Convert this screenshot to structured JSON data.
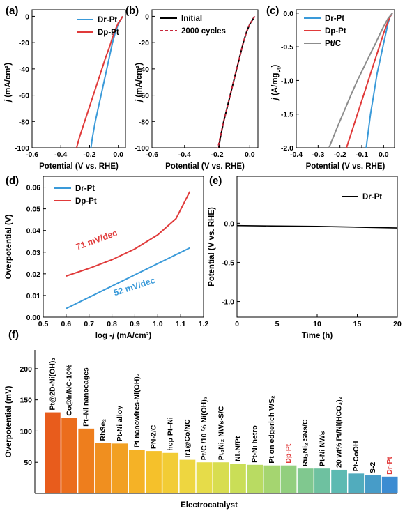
{
  "chart_data": [
    {
      "type": "line",
      "panel": "(a)",
      "xlabel": "Potential (V vs. RHE)",
      "ylabel": "j (mA/cm²)",
      "xlim": [
        -0.6,
        0.05
      ],
      "ylim": [
        -100,
        5
      ],
      "xticks": [
        -0.6,
        -0.4,
        -0.2,
        0.0
      ],
      "xtick_labels": [
        "-0.6",
        "-0.4",
        "-0.2",
        "0.0"
      ],
      "yticks": [
        0,
        -20,
        -40,
        -60,
        -80,
        -100
      ],
      "ytick_labels": [
        "0",
        "-20",
        "-40",
        "-60",
        "-80",
        "-100"
      ],
      "legend_placement": "top-right",
      "series": [
        {
          "name": "Dr-Pt",
          "color": "#3a9ad9",
          "x": [
            0.03,
            0.02,
            0.0,
            -0.02,
            -0.04,
            -0.06,
            -0.08,
            -0.1,
            -0.12,
            -0.14,
            -0.16,
            -0.18,
            -0.19
          ],
          "y": [
            0,
            -2,
            -6,
            -12,
            -20,
            -30,
            -40,
            -50,
            -60,
            -70,
            -80,
            -92,
            -100
          ]
        },
        {
          "name": "Dp-Pt",
          "color": "#e03a3a",
          "x": [
            0.03,
            0.02,
            0.0,
            -0.02,
            -0.04,
            -0.06,
            -0.09,
            -0.12,
            -0.15,
            -0.18,
            -0.21,
            -0.24,
            -0.27,
            -0.29
          ],
          "y": [
            0,
            -2,
            -5,
            -10,
            -16,
            -23,
            -32,
            -42,
            -52,
            -62,
            -72,
            -82,
            -92,
            -100
          ]
        }
      ]
    },
    {
      "type": "line",
      "panel": "(b)",
      "xlabel": "Potential (V vs. RHE)",
      "ylabel": "j (mA/cm²)",
      "xlim": [
        -0.6,
        0.05
      ],
      "ylim": [
        -100,
        5
      ],
      "xticks": [
        -0.6,
        -0.4,
        -0.2,
        0.0
      ],
      "xtick_labels": [
        "-0.6",
        "-0.4",
        "-0.2",
        "0.0"
      ],
      "yticks": [
        0,
        -20,
        -40,
        -60,
        -80,
        -100
      ],
      "ytick_labels": [
        "0",
        "-20",
        "-40",
        "-60",
        "-80",
        "-100"
      ],
      "legend_placement": "top-left",
      "series": [
        {
          "name": "Initial",
          "color": "#000000",
          "x": [
            0.03,
            0.02,
            0.0,
            -0.02,
            -0.04,
            -0.06,
            -0.08,
            -0.1,
            -0.12,
            -0.14,
            -0.16,
            -0.18,
            -0.19
          ],
          "y": [
            0,
            -2,
            -6,
            -12,
            -20,
            -30,
            -40,
            -50,
            -60,
            -70,
            -80,
            -92,
            -100
          ]
        },
        {
          "name": "2000 cycles",
          "color": "#c8283c",
          "dashed": true,
          "x": [
            0.03,
            0.02,
            0.0,
            -0.02,
            -0.04,
            -0.06,
            -0.08,
            -0.1,
            -0.12,
            -0.14,
            -0.16,
            -0.18,
            -0.195
          ],
          "y": [
            0,
            -2,
            -6,
            -12,
            -20,
            -30,
            -40,
            -50,
            -60,
            -70,
            -80,
            -91,
            -100
          ]
        }
      ]
    },
    {
      "type": "line",
      "panel": "(c)",
      "xlabel": "Potential (V vs. RHE)",
      "ylabel": "j (A/mgPt)",
      "xlim": [
        -0.4,
        0.05
      ],
      "ylim": [
        -2.0,
        0.05
      ],
      "xticks": [
        -0.4,
        -0.3,
        -0.2,
        -0.1,
        0.0
      ],
      "xtick_labels": [
        "-0.4",
        "-0.3",
        "-0.2",
        "-0.1",
        "0.0"
      ],
      "yticks": [
        0.0,
        -0.5,
        -1.0,
        -1.5,
        -2.0
      ],
      "ytick_labels": [
        "0.0",
        "-0.5",
        "-1.0",
        "-1.5",
        "-2.0"
      ],
      "legend_placement": "top-right",
      "series": [
        {
          "name": "Dr-Pt",
          "color": "#3a9ad9",
          "x": [
            0.04,
            0.03,
            0.02,
            0.01,
            0.0,
            -0.01,
            -0.02,
            -0.03,
            -0.04,
            -0.05,
            -0.06,
            -0.07,
            -0.08
          ],
          "y": [
            0.0,
            -0.05,
            -0.15,
            -0.3,
            -0.45,
            -0.6,
            -0.75,
            -0.9,
            -1.1,
            -1.3,
            -1.5,
            -1.75,
            -2.0
          ]
        },
        {
          "name": "Dp-Pt",
          "color": "#e03a3a",
          "x": [
            0.04,
            0.03,
            0.02,
            0.0,
            -0.02,
            -0.04,
            -0.06,
            -0.08,
            -0.1,
            -0.12,
            -0.14,
            -0.16,
            -0.17
          ],
          "y": [
            0.0,
            -0.05,
            -0.12,
            -0.3,
            -0.5,
            -0.7,
            -0.9,
            -1.1,
            -1.3,
            -1.5,
            -1.7,
            -1.9,
            -2.0
          ]
        },
        {
          "name": "Pt/C",
          "color": "#8c8c8c",
          "x": [
            0.04,
            0.02,
            0.0,
            -0.02,
            -0.04,
            -0.06,
            -0.09,
            -0.12,
            -0.15,
            -0.18,
            -0.21,
            -0.24,
            -0.25
          ],
          "y": [
            0.0,
            -0.08,
            -0.2,
            -0.33,
            -0.47,
            -0.6,
            -0.8,
            -1.0,
            -1.22,
            -1.45,
            -1.68,
            -1.92,
            -2.0
          ]
        }
      ]
    },
    {
      "type": "line",
      "panel": "(d)",
      "xlabel": "log -j (mA/cm²)",
      "ylabel": "Overpotential (V)",
      "xlim": [
        0.5,
        1.2
      ],
      "ylim": [
        0.0,
        0.065
      ],
      "xticks": [
        0.5,
        0.6,
        0.7,
        0.8,
        0.9,
        1.0,
        1.1,
        1.2
      ],
      "xtick_labels": [
        "0.5",
        "0.6",
        "0.7",
        "0.8",
        "0.9",
        "1.0",
        "1.1",
        "1.2"
      ],
      "yticks": [
        0.0,
        0.01,
        0.02,
        0.03,
        0.04,
        0.05,
        0.06
      ],
      "ytick_labels": [
        "0.00",
        "0.01",
        "0.02",
        "0.03",
        "0.04",
        "0.05",
        "0.06"
      ],
      "legend_placement": "top-left",
      "annotations": [
        "71 mV/dec",
        "52 mV/dec"
      ],
      "series": [
        {
          "name": "Dr-Pt",
          "color": "#3a9ad9",
          "x": [
            0.6,
            1.14
          ],
          "y": [
            0.004,
            0.032
          ]
        },
        {
          "name": "Dp-Pt",
          "color": "#e03a3a",
          "x": [
            0.6,
            0.7,
            0.8,
            0.9,
            1.0,
            1.08,
            1.14
          ],
          "y": [
            0.019,
            0.0225,
            0.0265,
            0.0315,
            0.038,
            0.0455,
            0.058
          ]
        }
      ]
    },
    {
      "type": "line",
      "panel": "(e)",
      "xlabel": "Time (h)",
      "ylabel": "Potential (V vs. RHE)",
      "xlim": [
        0,
        20
      ],
      "ylim": [
        -1.2,
        0.6
      ],
      "xticks": [
        0,
        5,
        10,
        15,
        20
      ],
      "xtick_labels": [
        "0",
        "5",
        "10",
        "15",
        "20"
      ],
      "yticks": [
        0.0,
        -0.5,
        -1.0
      ],
      "ytick_labels": [
        "0.0",
        "-0.5",
        "-1.0"
      ],
      "legend_placement": "top-right",
      "series": [
        {
          "name": "Dr-Pt",
          "color": "#000000",
          "x": [
            0,
            5,
            10,
            15,
            20
          ],
          "y": [
            -0.03,
            -0.035,
            -0.04,
            -0.05,
            -0.06
          ]
        }
      ]
    },
    {
      "type": "bar",
      "panel": "(f)",
      "xlabel": "Electrocatalyst",
      "ylabel": "Overpotential (mV)",
      "ylim": [
        0,
        230
      ],
      "yticks": [
        50,
        100,
        150,
        200
      ],
      "ytick_labels": [
        "50",
        "100",
        "150",
        "200"
      ],
      "categories": [
        "Pt@2D-Ni(OH)₂",
        "Co@Ir/NC-10%",
        "Pt–Ni nanocages",
        "RhSe₂",
        "Pt-Ni alloy",
        "Pt nanowires-Ni(OH)₂",
        "PN-2/C",
        "hcp Pt–Ni",
        "Ir1@Co/NC",
        "Pt/C /10 % Ni(OH)₂",
        "Pt₃Ni₂ NWs-S/C",
        "Ni₃N/Pt",
        "Pt-Ni hetro",
        "Pt on edgerich WS₂",
        "Dp-Pt",
        "Ru₂Ni₂ SNs/C",
        "Pt-Ni NWs",
        "20 wt% Pt/Ni(HCO₃)₂",
        "Pt-CoOH",
        "S-2",
        "Dr-Pt"
      ],
      "values": [
        130,
        121,
        104,
        81,
        80,
        70,
        68,
        65,
        54,
        50,
        50,
        48,
        46,
        45,
        45,
        40,
        40,
        38,
        32,
        29,
        27
      ],
      "highlight_labels": [
        "Dp-Pt",
        "Dr-Pt"
      ],
      "highlight_color": "#e03a3a"
    }
  ]
}
